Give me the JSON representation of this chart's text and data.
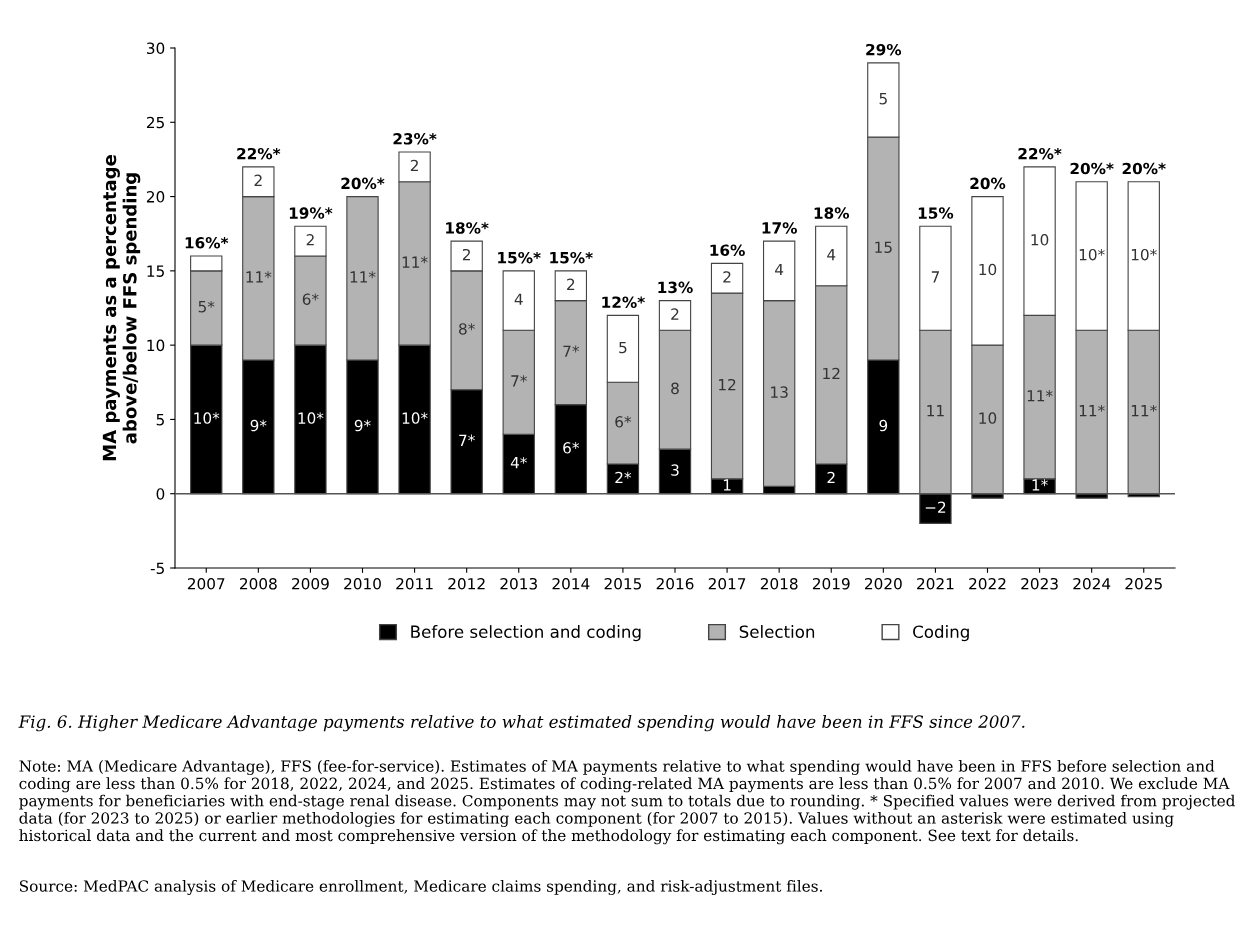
{
  "chart_data": {
    "type": "bar",
    "stacked": true,
    "ylabel": "MA payments as a percentage\nabove/below FFS spending",
    "categories": [
      "2007",
      "2008",
      "2009",
      "2010",
      "2011",
      "2012",
      "2013",
      "2014",
      "2015",
      "2016",
      "2017",
      "2018",
      "2019",
      "2020",
      "2021",
      "2022",
      "2023",
      "2024",
      "2025"
    ],
    "series": [
      {
        "name": "Before selection and coding",
        "color": "#000000",
        "values": [
          10,
          9,
          10,
          9,
          10,
          7,
          4,
          6,
          2,
          3,
          1,
          0.5,
          2,
          9,
          -2,
          -0.3,
          1,
          -0.3,
          -0.2
        ],
        "value_labels": [
          "10*",
          "9*",
          "10*",
          "9*",
          "10*",
          "7*",
          "4*",
          "6*",
          "2*",
          "3",
          "1",
          null,
          "2",
          "9",
          "−2",
          null,
          "1*",
          null,
          null
        ]
      },
      {
        "name": "Selection",
        "color": "#b3b3b3",
        "values": [
          5,
          11,
          6,
          11,
          11,
          8,
          7,
          7,
          5.5,
          8,
          12.5,
          12.5,
          12,
          15,
          11,
          10,
          11,
          11,
          11
        ],
        "value_labels": [
          "5*",
          "11*",
          "6*",
          "11*",
          "11*",
          "8*",
          "7*",
          "7*",
          "6*",
          "8",
          "12",
          "13",
          "12",
          "15",
          "11",
          "10",
          "11*",
          "11*",
          "11*"
        ]
      },
      {
        "name": "Coding",
        "color": "#ffffff",
        "values": [
          1,
          2,
          2,
          0,
          2,
          2,
          4,
          2,
          4.5,
          2,
          2,
          4,
          4,
          5,
          7,
          10,
          10,
          10,
          10
        ],
        "value_labels": [
          null,
          "2",
          "2",
          null,
          "2",
          "2",
          "4",
          "2",
          "5",
          "2",
          "2",
          "4",
          "4",
          "5",
          "7",
          "10",
          "10",
          "10*",
          "10*"
        ]
      }
    ],
    "totals": [
      "16%*",
      "22%*",
      "19%*",
      "20%*",
      "23%*",
      "18%*",
      "15%*",
      "15%*",
      "12%*",
      "13%",
      "16%",
      "17%",
      "18%",
      "29%",
      "15%",
      "20%",
      "22%*",
      "20%*",
      "20%*"
    ],
    "ylim": [
      -5,
      30
    ],
    "yticks": [
      -5,
      0,
      5,
      10,
      15,
      20,
      25,
      30
    ],
    "ref_lines": [
      {
        "axis": "y",
        "value": 0,
        "color": "#555555"
      }
    ],
    "grid": false,
    "legend": "bottom",
    "annotations": [
      "Fig. 6. Higher Medicare Advantage payments relative to what estimated spending would have been in FFS since 2007.",
      "Note: MA (Medicare Advantage), FFS (fee-for-service). Estimates of MA payments relative to what spending would have been in FFS before selection and coding are less than 0.5% for 2018, 2022, 2024, and 2025. Estimates of coding-related MA payments are less than 0.5% for 2007 and 2010. We exclude MA payments for beneficiaries with end-stage renal disease. Components may not sum to totals due to rounding. * Specified values were derived from projected data (for 2023 to 2025) or earlier methodologies for estimating each component (for 2007 to 2015). Values without an asterisk were estimated using historical data and the current and most comprehensive version of the methodology for estimating each component. See text for details.",
      "Source: MedPAC analysis of Medicare enrollment, Medicare claims spending, and risk-adjustment files."
    ]
  }
}
